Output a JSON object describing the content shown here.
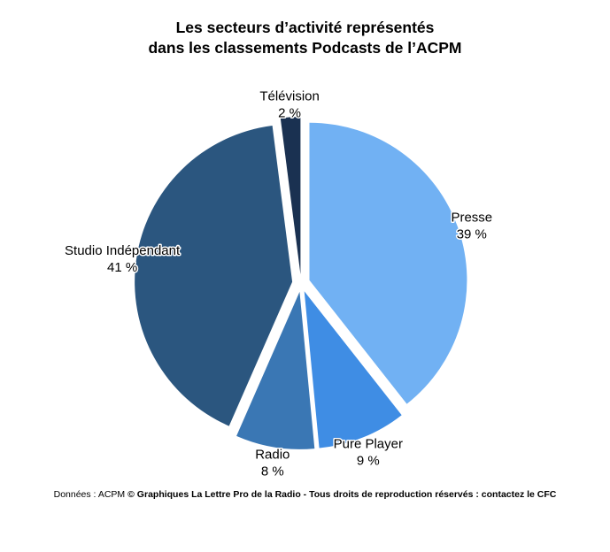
{
  "header": {
    "title_line1": "Les secteurs d’activité représentés",
    "title_line2": "dans les classements Podcasts de l’ACPM"
  },
  "footer": {
    "source": "Données : ACPM",
    "copyright": "© Graphiques La Lettre Pro de la Radio - Tous droits de reproduction réservés : contactez le CFC"
  },
  "chart_data": {
    "type": "pie",
    "title": "Les secteurs d’activité représentés dans les classements Podcasts de l’ACPM",
    "unit": "%",
    "legend": "none",
    "direction": "clockwise",
    "start_angle_deg": 0,
    "exploded": true,
    "slices": [
      {
        "label": "Presse",
        "value": 39,
        "display_value": "39 %",
        "color": "#71b1f3"
      },
      {
        "label": "Pure Player",
        "value": 9,
        "display_value": "9 %",
        "color": "#3f8de4"
      },
      {
        "label": "Radio",
        "value": 8,
        "display_value": "8 %",
        "color": "#3a77b4"
      },
      {
        "label": "Studio Indépendant",
        "value": 41,
        "display_value": "41 %",
        "color": "#2b567f"
      },
      {
        "label": "Télévision",
        "value": 2,
        "display_value": "2 %",
        "color": "#1a3151"
      }
    ]
  }
}
